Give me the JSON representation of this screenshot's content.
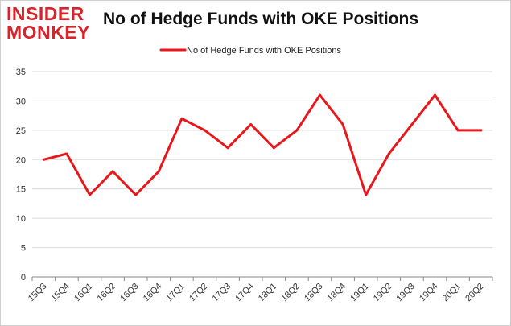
{
  "logo": {
    "line1": "INSIDER",
    "line2": "MONKEY"
  },
  "chart_data": {
    "type": "line",
    "title": "No of Hedge Funds with OKE Positions",
    "xlabel": "",
    "ylabel": "",
    "categories": [
      "15Q3",
      "15Q4",
      "16Q1",
      "16Q2",
      "16Q3",
      "16Q4",
      "17Q1",
      "17Q2",
      "17Q3",
      "17Q4",
      "18Q1",
      "18Q2",
      "18Q3",
      "18Q4",
      "19Q1",
      "19Q2",
      "19Q3",
      "19Q4",
      "20Q1",
      "20Q2"
    ],
    "series": [
      {
        "name": "No of Hedge Funds with OKE Positions",
        "color": "#e8171c",
        "values": [
          20,
          21,
          14,
          18,
          14,
          18,
          27,
          25,
          22,
          26,
          22,
          25,
          31,
          26,
          14,
          21,
          26,
          31,
          25,
          25
        ]
      }
    ],
    "ylim": [
      0,
      35
    ],
    "yticks": [
      0,
      5,
      10,
      15,
      20,
      25,
      30,
      35
    ],
    "grid": true,
    "legend_position": "top-center",
    "colors": {
      "grid": "#d9d9d9",
      "axis": "#888888",
      "brand": "#d8232a"
    }
  }
}
